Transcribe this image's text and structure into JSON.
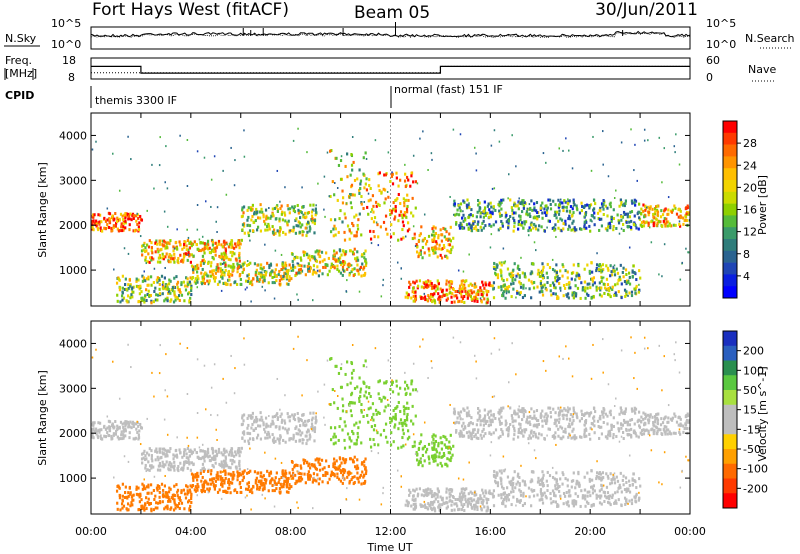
{
  "header": {
    "title": "Fort Hays West (fitACF)",
    "beam": "Beam 05",
    "date": "30/Jun/2011"
  },
  "noise_panel": {
    "left_label": "N.Sky",
    "right_label": "N.Search",
    "left_ticks": [
      "10^5",
      "10^0"
    ],
    "right_ticks": [
      "10^5",
      "10^0"
    ]
  },
  "freq_panel": {
    "left_label": "Freq.",
    "left_unit": "[MHz]",
    "left_ticks": [
      "18",
      "8"
    ],
    "right_label": "Nave",
    "right_ticks": [
      "60",
      "0"
    ],
    "freq_mhz": [
      {
        "from": 0,
        "to": 2,
        "value": 14
      },
      {
        "from": 2,
        "to": 14,
        "value": 10.8
      },
      {
        "from": 14,
        "to": 24,
        "value": 14
      }
    ],
    "nave": [
      {
        "from": 0,
        "to": 2,
        "value": 18
      },
      {
        "from": 2,
        "to": 14,
        "value": 18
      },
      {
        "from": 14,
        "to": 24,
        "value": 36
      }
    ]
  },
  "cpid_panel": {
    "label": "CPID",
    "modes": [
      "themis 3300 IF",
      "normal (fast) 151 IF"
    ],
    "switch_hours": [
      0,
      12
    ]
  },
  "chart_data": [
    {
      "type": "heatmap",
      "quantity": "Power",
      "xlabel": "",
      "ylabel": "Slant Range [km]",
      "xlim": [
        0,
        24
      ],
      "ylim": [
        200,
        4500
      ],
      "yticks": [
        "1000",
        "2000",
        "3000",
        "4000"
      ],
      "xticks_hours": [
        0,
        2,
        4,
        6,
        8,
        10,
        12,
        14,
        16,
        18,
        20,
        22,
        24
      ],
      "colorbar": {
        "label": "Power [dB]",
        "ticks": [
          "28",
          "24",
          "20",
          "16",
          "12",
          "8",
          "4"
        ],
        "colors": [
          "#ff0000",
          "#ff3a00",
          "#ff6a00",
          "#ff9400",
          "#ffbf00",
          "#f2d400",
          "#cbdb00",
          "#8ed000",
          "#55bb3a",
          "#3a9b6a",
          "#2f7d7b",
          "#2a6390",
          "#1f45b5",
          "#0a1fe0",
          "#0000ff"
        ]
      }
    },
    {
      "type": "heatmap",
      "quantity": "Velocity",
      "xlabel": "Time UT",
      "ylabel": "Slant Range [km]",
      "xlim": [
        0,
        24
      ],
      "ylim": [
        200,
        4500
      ],
      "yticks": [
        "1000",
        "2000",
        "3000",
        "4000"
      ],
      "xtick_labels": [
        "00:00",
        "04:00",
        "08:00",
        "12:00",
        "16:00",
        "20:00",
        "00:00"
      ],
      "colorbar": {
        "label": "Velocity [m s^-1]",
        "ticks": [
          "200",
          "100",
          "50",
          "15",
          "-15",
          "-50",
          "-100",
          "-200"
        ],
        "colors": [
          "#1a2fbf",
          "#2a5fbf",
          "#2a8f4f",
          "#5ac840",
          "#a8e040",
          "#bebebe",
          "#bebebe",
          "#ffd000",
          "#ffa000",
          "#ff6a00",
          "#ff3a00",
          "#ff0000"
        ]
      }
    }
  ]
}
